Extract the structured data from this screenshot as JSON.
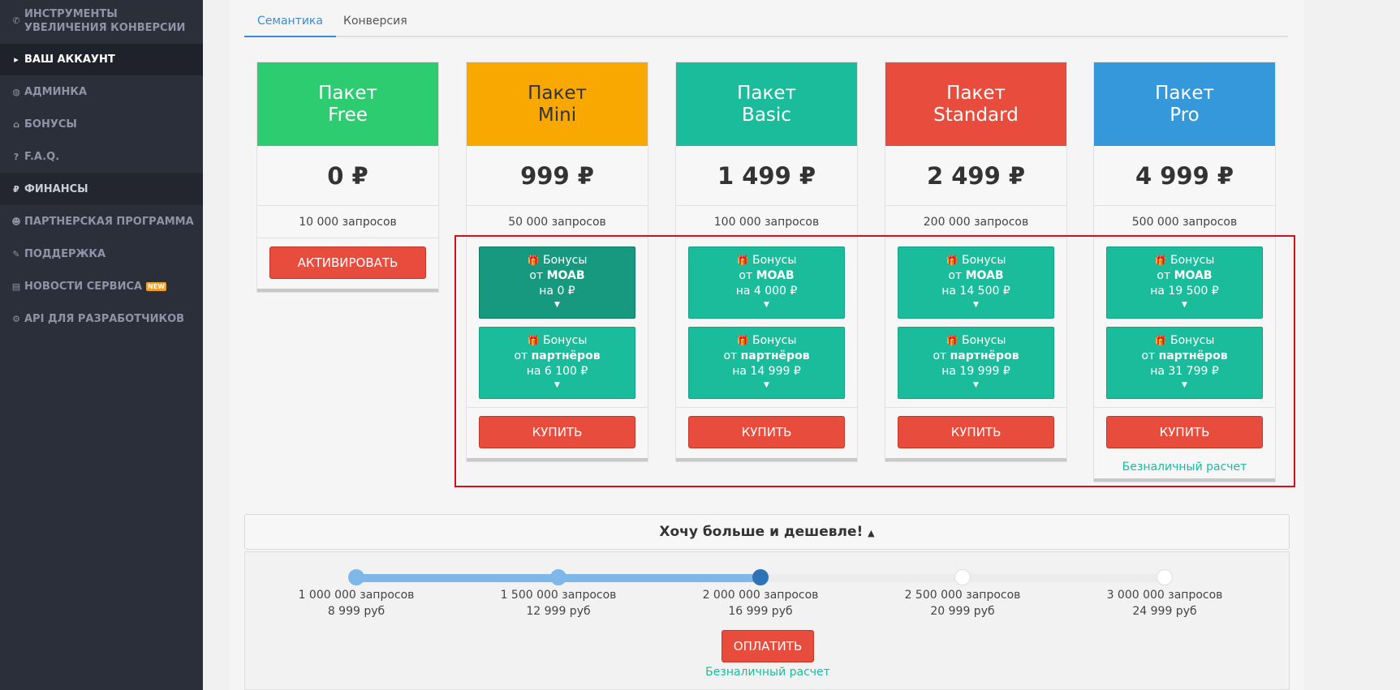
{
  "sidebar": {
    "items": [
      {
        "icon": "phone-icon",
        "glyph": "✆",
        "label": "ИНСТРУМЕНТЫ УВЕЛИЧЕНИЯ КОНВЕРСИИ"
      },
      {
        "icon": "caret-right-icon",
        "glyph": "▸",
        "label": "ВАШ АККАУНТ"
      },
      {
        "icon": "dashboard-icon",
        "glyph": "◍",
        "label": "АДМИНКА"
      },
      {
        "icon": "gift-icon",
        "glyph": "⌂",
        "label": "БОНУСЫ"
      },
      {
        "icon": "question-icon",
        "glyph": "?",
        "label": "F.A.Q."
      },
      {
        "icon": "ruble-icon",
        "glyph": "₽",
        "label": "ФИНАНСЫ"
      },
      {
        "icon": "users-icon",
        "glyph": "☻",
        "label": "ПАРТНЕРСКАЯ ПРОГРАММА"
      },
      {
        "icon": "support-icon",
        "glyph": "✎",
        "label": "ПОДДЕРЖКА"
      },
      {
        "icon": "newspaper-icon",
        "glyph": "▤",
        "label": "НОВОСТИ СЕРВИСА",
        "badge": "NEW"
      },
      {
        "icon": "cogs-icon",
        "glyph": "⚙",
        "label": "API ДЛЯ РАЗРАБОТЧИКОВ"
      }
    ]
  },
  "tabs": [
    "Семантика",
    "Конверсия"
  ],
  "packages": [
    {
      "line1": "Пакет",
      "line2": "Free",
      "price": "0 ₽",
      "requests": "10 000 запросов",
      "color": "#2ecc71",
      "text_color": "#ffffff",
      "button": "АКТИВИРОВАТЬ"
    },
    {
      "line1": "Пакет",
      "line2": "Mini",
      "price": "999 ₽",
      "requests": "50 000 запросов",
      "color": "#f8a800",
      "text_color": "#333333",
      "button": "КУПИТЬ",
      "bonus_moab": {
        "l1": "Бонусы",
        "l2a": "от",
        "l2b": "MOAB",
        "l3": "на 0 ₽"
      },
      "bonus_partners": {
        "l1": "Бонусы",
        "l2a": "от",
        "l2b": "партнёров",
        "l3": "на 6 100 ₽"
      }
    },
    {
      "line1": "Пакет",
      "line2": "Basic",
      "price": "1 499 ₽",
      "requests": "100 000 запросов",
      "color": "#1abc9c",
      "text_color": "#ffffff",
      "button": "КУПИТЬ",
      "bonus_moab": {
        "l1": "Бонусы",
        "l2a": "от",
        "l2b": "MOAB",
        "l3": "на 4 000 ₽"
      },
      "bonus_partners": {
        "l1": "Бонусы",
        "l2a": "от",
        "l2b": "партнёров",
        "l3": "на 14 999 ₽"
      }
    },
    {
      "line1": "Пакет",
      "line2": "Standard",
      "price": "2 499 ₽",
      "requests": "200 000 запросов",
      "color": "#e74c3c",
      "text_color": "#ffffff",
      "button": "КУПИТЬ",
      "bonus_moab": {
        "l1": "Бонусы",
        "l2a": "от",
        "l2b": "MOAB",
        "l3": "на 14 500 ₽"
      },
      "bonus_partners": {
        "l1": "Бонусы",
        "l2a": "от",
        "l2b": "партнёров",
        "l3": "на 19 999 ₽"
      }
    },
    {
      "line1": "Пакет",
      "line2": "Pro",
      "price": "4 999 ₽",
      "requests": "500 000 запросов",
      "color": "#3498db",
      "text_color": "#ffffff",
      "button": "КУПИТЬ",
      "bonus_moab": {
        "l1": "Бонусы",
        "l2a": "от",
        "l2b": "MOAB",
        "l3": "на 19 500 ₽"
      },
      "bonus_partners": {
        "l1": "Бонусы",
        "l2a": "от",
        "l2b": "партнёров",
        "l3": "на 31 799 ₽"
      },
      "cashless": "Безналичный расчет"
    }
  ],
  "volume": {
    "title": "Хочу больше и дешевле!",
    "caret": "▲",
    "selected_index": 2,
    "steps": [
      {
        "requests": "1 000 000 запросов",
        "price": "8 999 руб"
      },
      {
        "requests": "1 500 000 запросов",
        "price": "12 999 руб"
      },
      {
        "requests": "2 000 000 запросов",
        "price": "16 999 руб"
      },
      {
        "requests": "2 500 000 запросов",
        "price": "20 999 руб"
      },
      {
        "requests": "3 000 000 запросов",
        "price": "24 999 руб"
      }
    ],
    "pay_button": "ОПЛАТИТЬ",
    "cashless": "Безналичный расчет"
  },
  "colors": {
    "accent": "#3a8cd8",
    "button_red": "#e74c3c",
    "bonus_green": "#1abc9c",
    "highlight": "#d0101a"
  }
}
